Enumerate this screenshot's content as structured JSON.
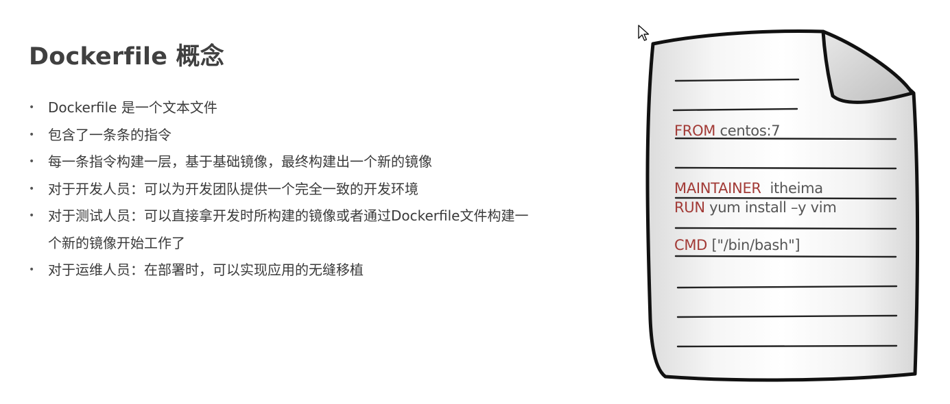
{
  "slide": {
    "title": "Dockerfile 概念",
    "bullets": [
      "Dockerfile 是一个文本文件",
      "包含了一条条的指令",
      "每一条指令构建一层，基于基础镜像，最终构建出一个新的镜像",
      "对于开发人员：可以为开发团队提供一个完全一致的开发环境",
      "对于测试人员：可以直接拿开发时所构建的镜像或者通过Dockerfile文件构建一个新的镜像开始工作了",
      "对于运维人员：在部署时，可以实现应用的无缝移植"
    ]
  },
  "document": {
    "lines": [
      {
        "keyword": "FROM",
        "value": " centos:7"
      },
      {
        "keyword": "MAINTAINER",
        "value": "  itheima"
      },
      {
        "keyword": "RUN",
        "value": " yum install –y vim"
      },
      {
        "keyword": "CMD",
        "value": " [\"/bin/bash\"]"
      }
    ]
  },
  "colors": {
    "keyword": "#a23a36",
    "text": "#555555",
    "title": "#404040"
  },
  "icons": {
    "cursor": "mouse-pointer-icon",
    "document": "document-page-icon"
  }
}
